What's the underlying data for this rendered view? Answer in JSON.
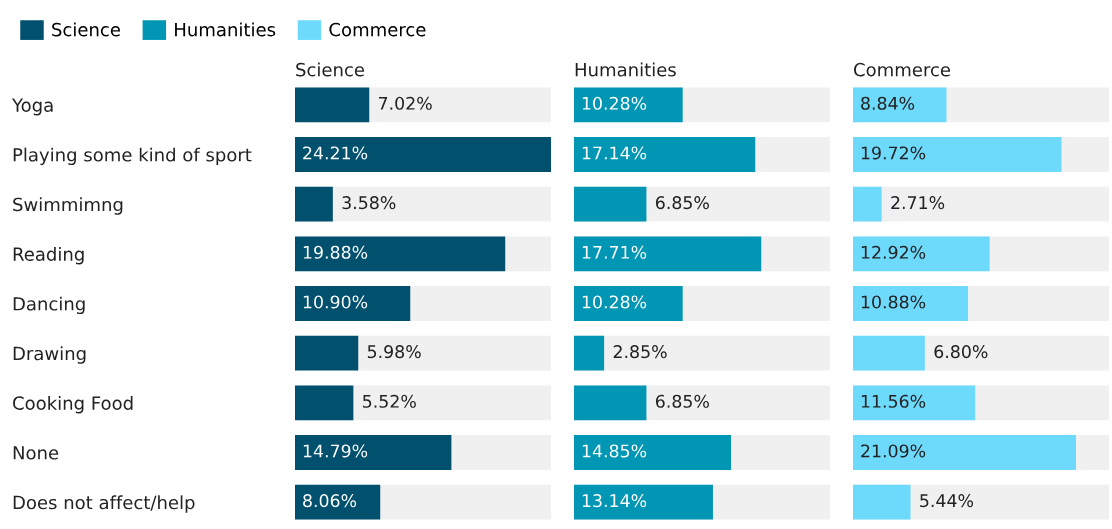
{
  "chart_data": [
    {
      "type": "bar",
      "orientation": "horizontal",
      "title": "Science",
      "categories": [
        "Yoga",
        "Playing some kind of sport",
        "Swimmimng",
        "Reading",
        "Dancing",
        "Drawing",
        "Cooking Food",
        "None",
        "Does not affect/help"
      ],
      "xlim": [
        0,
        24.21
      ],
      "tick_labels": "y",
      "legend": "top left",
      "data_labels": true,
      "series": [
        {
          "name": "Science",
          "color": "#00506e",
          "values": [
            7.02,
            24.21,
            3.58,
            19.88,
            10.9,
            5.98,
            5.52,
            14.79,
            8.06
          ],
          "value_labels": [
            "7.02%",
            "24.21%",
            "3.58%",
            "19.88%",
            "10.90%",
            "5.98%",
            "5.52%",
            "14.79%",
            "8.06%"
          ]
        }
      ]
    },
    {
      "type": "bar",
      "orientation": "horizontal",
      "title": "Humanities",
      "categories": [
        null,
        null,
        null,
        null,
        null,
        null,
        null,
        null,
        null
      ],
      "xlim": [
        0,
        24.21
      ],
      "tick_labels": false,
      "legend": "top left",
      "data_labels": true,
      "series": [
        {
          "name": "Humanities",
          "color": "#0096b4",
          "values": [
            10.28,
            17.14,
            6.85,
            17.71,
            10.28,
            2.85,
            6.85,
            14.85,
            13.14
          ],
          "value_labels": [
            "10.28%",
            "17.14%",
            "6.85%",
            "17.71%",
            "10.28%",
            "2.85%",
            "6.85%",
            "14.85%",
            "13.14%"
          ]
        }
      ]
    },
    {
      "type": "bar",
      "orientation": "horizontal",
      "title": "Commerce",
      "categories": [
        null,
        null,
        null,
        null,
        null,
        null,
        null,
        null,
        null
      ],
      "xlim": [
        0,
        24.21
      ],
      "tick_labels": false,
      "legend": "top left",
      "data_labels": true,
      "series": [
        {
          "name": "Commerce",
          "color": "#6dd9fb",
          "values": [
            8.84,
            19.72,
            2.71,
            12.92,
            10.88,
            6.8,
            11.56,
            21.09,
            5.44
          ],
          "value_labels": [
            "8.84%",
            "19.72%",
            "2.71%",
            "12.92%",
            "10.88%",
            "6.80%",
            "11.56%",
            "21.09%",
            "5.44%"
          ]
        }
      ]
    }
  ]
}
